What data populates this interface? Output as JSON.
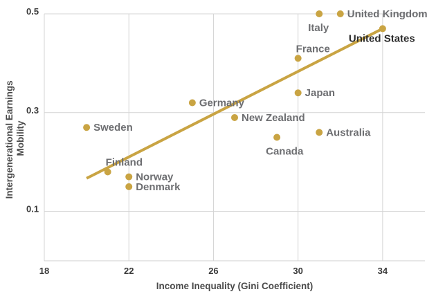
{
  "chart_data": {
    "type": "scatter",
    "title": "",
    "xlabel": "Income Inequality (Gini Coefficient)",
    "ylabel_lines": [
      "Intergenerational Earnings",
      "Mobility"
    ],
    "xlim": [
      18,
      36
    ],
    "ylim": [
      0.0,
      0.5
    ],
    "xticks": [
      18,
      22,
      26,
      30,
      34
    ],
    "xtick_labels": [
      "18",
      "22",
      "26",
      "30",
      "34"
    ],
    "yticks": [
      0.1,
      0.3,
      0.5
    ],
    "ytick_labels": [
      "0.1",
      "0.3",
      "0.5"
    ],
    "grid": true,
    "color": "#c9a443",
    "points": [
      {
        "label": "Italy",
        "x": 31,
        "y": 0.5,
        "label_pos": "below"
      },
      {
        "label": "United Kingdom",
        "x": 32,
        "y": 0.5,
        "label_pos": "right"
      },
      {
        "label": "United States",
        "x": 34,
        "y": 0.47,
        "label_pos": "below",
        "highlight": true
      },
      {
        "label": "France",
        "x": 30,
        "y": 0.41,
        "label_pos": "above"
      },
      {
        "label": "Japan",
        "x": 30,
        "y": 0.34,
        "label_pos": "right"
      },
      {
        "label": "Germany",
        "x": 25,
        "y": 0.32,
        "label_pos": "right"
      },
      {
        "label": "New Zealand",
        "x": 27,
        "y": 0.29,
        "label_pos": "right"
      },
      {
        "label": "Canada",
        "x": 29,
        "y": 0.25,
        "label_pos": "below"
      },
      {
        "label": "Australia",
        "x": 31,
        "y": 0.26,
        "label_pos": "right"
      },
      {
        "label": "Sweden",
        "x": 20,
        "y": 0.27,
        "label_pos": "right"
      },
      {
        "label": "Finland",
        "x": 21,
        "y": 0.18,
        "label_pos": "above"
      },
      {
        "label": "Norway",
        "x": 22,
        "y": 0.17,
        "label_pos": "right"
      },
      {
        "label": "Denmark",
        "x": 22,
        "y": 0.15,
        "label_pos": "right"
      }
    ],
    "trendline": {
      "x": [
        20,
        34
      ],
      "y": [
        0.167,
        0.47
      ]
    }
  }
}
